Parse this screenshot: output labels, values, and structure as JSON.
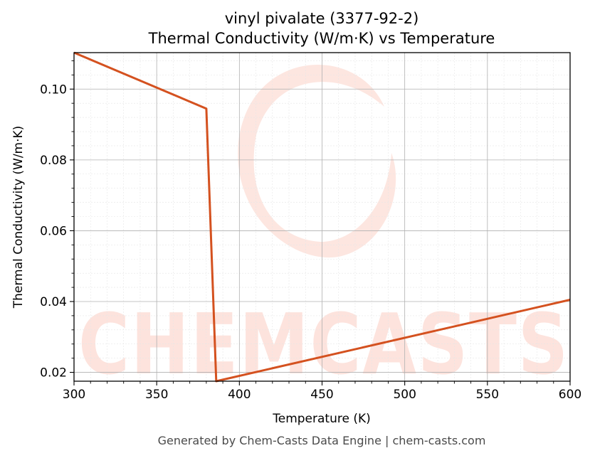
{
  "chart_data": {
    "type": "line",
    "title_line1": "vinyl pivalate (3377-92-2)",
    "title_line2": "Thermal Conductivity (W/m·K) vs Temperature",
    "xlabel": "Temperature (K)",
    "ylabel": "Thermal Conductivity (W/m·K)",
    "xlim": [
      300,
      600
    ],
    "ylim": [
      0.0175,
      0.1103
    ],
    "x_ticks": [
      300,
      350,
      400,
      450,
      500,
      550,
      600
    ],
    "y_ticks": [
      0.02,
      0.04,
      0.06,
      0.08,
      0.1
    ],
    "y_tick_labels": [
      "0.02",
      "0.04",
      "0.06",
      "0.08",
      "0.10"
    ],
    "grid": true,
    "series": [
      {
        "color": "#d4511f",
        "x": [
          300,
          380,
          386,
          600
        ],
        "y": [
          0.1103,
          0.0945,
          0.0175,
          0.0405
        ]
      }
    ]
  },
  "watermark": {
    "text": "CHEMCASTS",
    "color": "#fde3dd"
  },
  "footer": "Generated by Chem-Casts Data Engine | chem-casts.com"
}
